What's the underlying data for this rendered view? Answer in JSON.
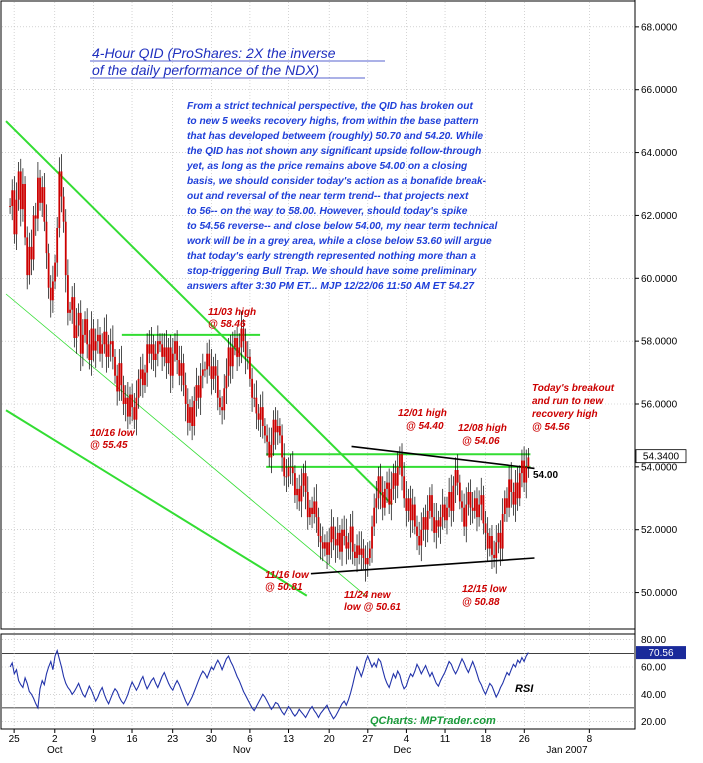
{
  "chart_data": {
    "type": "candlestick",
    "title_lines": [
      "4-Hour QID (ProShares: 2X the inverse",
      "of the daily performance of the NDX)"
    ],
    "commentary_lines": [
      "From a strict technical perspective, the QID has broken out",
      "to new 5 weeks recovery highs, from within the base pattern",
      "that has developed betweem (roughly) 50.70 and 54.20. While",
      "the QID has not shown any significant upside follow-through",
      "yet, as long as the price remains above 54.00 on a closing",
      "basis, we should consider today's action as a bonafide break-",
      "out and reversal of the near term trend-- that projects next",
      "to 56-- on the way to 58.00. However, should today's spike",
      "to 54.56 reverse-- and close below 54.00, my near term technical",
      "work will be in a grey area, while a close below 53.60 will argue",
      "that today's early strength represented nothing more than a",
      "stop-triggering Bull Trap. We should have some preliminary",
      "answers after 3:30 PM ET... MJP 12/22/06  11:50 AM ET 54.27"
    ],
    "price_axis": {
      "ticks": [
        "68.0000",
        "66.0000",
        "64.0000",
        "62.0000",
        "60.0000",
        "58.0000",
        "56.0000",
        "54.0000",
        "52.0000",
        "50.0000"
      ],
      "values": [
        68,
        66,
        64,
        62,
        60,
        58,
        56,
        54,
        52,
        50
      ],
      "range": [
        49.0,
        68.6
      ]
    },
    "last_price_label": "54.3400",
    "last_price": 54.34,
    "rsi_axis": {
      "ticks": [
        "80.00",
        "60.00",
        "40.00",
        "20.00"
      ],
      "values": [
        80,
        60,
        40,
        20
      ],
      "range": [
        16,
        82
      ]
    },
    "rsi_last_label": "70.56",
    "rsi_last": 70.56,
    "x_axis": {
      "day_ticks": [
        {
          "label": "25",
          "t": 2
        },
        {
          "label": "2",
          "t": 22
        },
        {
          "label": "9",
          "t": 41
        },
        {
          "label": "16",
          "t": 60
        },
        {
          "label": "23",
          "t": 80
        },
        {
          "label": "30",
          "t": 99
        },
        {
          "label": "6",
          "t": 118
        },
        {
          "label": "13",
          "t": 137
        },
        {
          "label": "20",
          "t": 157
        },
        {
          "label": "27",
          "t": 176
        },
        {
          "label": "4",
          "t": 195
        },
        {
          "label": "11",
          "t": 214
        },
        {
          "label": "18",
          "t": 234
        },
        {
          "label": "26",
          "t": 253
        },
        {
          "label": "8",
          "t": 285
        }
      ],
      "month_ticks": [
        {
          "label": "Oct",
          "t": 22
        },
        {
          "label": "Nov",
          "t": 114
        },
        {
          "label": "Dec",
          "t": 193
        },
        {
          "label": "Jan 2007",
          "t": 274
        }
      ],
      "range": [
        -2,
        305
      ]
    },
    "closes": [
      62.3,
      62.8,
      61.4,
      62.5,
      63.4,
      62.2,
      63.0,
      61.3,
      60.1,
      61.0,
      60.6,
      62.0,
      61.9,
      63.2,
      62.4,
      62.9,
      61.8,
      60.8,
      59.7,
      59.3,
      59.9,
      60.5,
      61.6,
      63.4,
      62.6,
      61.8,
      60.1,
      58.9,
      59.0,
      59.4,
      58.1,
      58.5,
      58.9,
      57.6,
      58.2,
      58.7,
      57.9,
      57.4,
      58.4,
      57.7,
      58.0,
      58.2,
      57.6,
      57.9,
      58.3,
      57.5,
      57.9,
      58.0,
      57.5,
      56.9,
      56.4,
      57.3,
      56.6,
      56.0,
      56.2,
      55.6,
      56.3,
      55.9,
      55.5,
      56.2,
      56.8,
      57.1,
      56.6,
      57.0,
      57.9,
      57.6,
      57.9,
      57.4,
      57.6,
      58.0,
      57.9,
      57.5,
      57.8,
      57.3,
      57.8,
      56.9,
      57.6,
      58.0,
      57.4,
      56.9,
      57.3,
      56.6,
      56.0,
      55.4,
      55.9,
      55.3,
      56.1,
      56.6,
      56.2,
      56.9,
      57.1,
      57.1,
      57.6,
      57.2,
      56.8,
      57.2,
      56.9,
      56.2,
      55.9,
      55.8,
      56.5,
      56.9,
      57.8,
      57.2,
      57.8,
      58.1,
      57.5,
      57.8,
      58.4,
      58.0,
      57.5,
      57.5,
      56.8,
      56.2,
      56.2,
      55.7,
      55.5,
      55.9,
      55.3,
      55.0,
      54.8,
      54.3,
      54.7,
      55.5,
      55.1,
      55.3,
      55.0,
      54.3,
      53.7,
      53.7,
      54.0,
      54.0,
      53.8,
      53.1,
      53.3,
      52.9,
      53.4,
      53.8,
      53.2,
      52.4,
      52.7,
      52.5,
      52.9,
      52.4,
      51.8,
      51.6,
      51.4,
      51.6,
      51.2,
      51.6,
      52.1,
      51.7,
      51.5,
      51.9,
      51.3,
      52.0,
      51.8,
      51.4,
      51.6,
      52.1,
      51.3,
      51.1,
      51.5,
      51.2,
      51.4,
      51.1,
      50.9,
      51.1,
      51.4,
      52.1,
      52.7,
      53.0,
      53.7,
      53.2,
      52.7,
      53.3,
      53.5,
      52.8,
      53.3,
      53.8,
      53.4,
      54.0,
      54.4,
      53.7,
      53.0,
      52.6,
      53.0,
      52.3,
      52.8,
      52.1,
      51.8,
      51.5,
      52.0,
      52.4,
      52.0,
      52.6,
      53.1,
      52.4,
      51.9,
      52.3,
      52.1,
      52.4,
      52.8,
      52.3,
      52.7,
      53.2,
      52.6,
      53.4,
      53.9,
      53.5,
      52.9,
      52.7,
      52.1,
      52.8,
      53.2,
      52.7,
      52.6,
      53.0,
      52.4,
      52.8,
      53.1,
      52.2,
      51.9,
      51.4,
      51.8,
      51.2,
      51.1,
      51.6,
      51.9,
      51.4,
      52.5,
      53.0,
      52.7,
      53.6,
      53.2,
      52.8,
      53.5,
      53.0,
      53.8,
      54.2,
      53.5,
      54.0,
      54.3
    ],
    "rsi": [
      60,
      63,
      55,
      58,
      50,
      47,
      45,
      52,
      48,
      42,
      40,
      37,
      33,
      30,
      44,
      50,
      47,
      55,
      60,
      64,
      58,
      68,
      72,
      66,
      60,
      53,
      48,
      45,
      43,
      40,
      42,
      45,
      48,
      44,
      40,
      38,
      42,
      46,
      43,
      39,
      35,
      38,
      42,
      45,
      40,
      36,
      33,
      37,
      41,
      44,
      42,
      38,
      35,
      33,
      36,
      40,
      45,
      49,
      46,
      43,
      46,
      50,
      53,
      48,
      44,
      47,
      50,
      52,
      48,
      45,
      49,
      53,
      56,
      52,
      48,
      45,
      43,
      47,
      50,
      47,
      43,
      39,
      35,
      32,
      35,
      38,
      42,
      46,
      50,
      54,
      57,
      55,
      52,
      56,
      60,
      58,
      62,
      65,
      62,
      58,
      62,
      66,
      68,
      64,
      61,
      57,
      53,
      50,
      46,
      42,
      39,
      36,
      33,
      30,
      28,
      31,
      34,
      37,
      40,
      38,
      35,
      32,
      29,
      31,
      34,
      33,
      30,
      27,
      25,
      28,
      31,
      29,
      26,
      24,
      26,
      29,
      27,
      25,
      23,
      26,
      29,
      31,
      28,
      26,
      23,
      26,
      28,
      30,
      32,
      28,
      25,
      22,
      24,
      27,
      30,
      33,
      35,
      32,
      36,
      41,
      47,
      54,
      60,
      57,
      53,
      58,
      64,
      68,
      64,
      60,
      63,
      60,
      66,
      64,
      58,
      52,
      48,
      45,
      50,
      55,
      52,
      57,
      54,
      48,
      44,
      46,
      51,
      55,
      53,
      57,
      62,
      59,
      55,
      58,
      61,
      57,
      53,
      56,
      52,
      48,
      46,
      50,
      53,
      56,
      60,
      64,
      62,
      58,
      55,
      58,
      62,
      66,
      63,
      59,
      56,
      60,
      64,
      60,
      55,
      50,
      47,
      43,
      40,
      44,
      48,
      46,
      42,
      38,
      41,
      45,
      48,
      52,
      56,
      54,
      58,
      62,
      60,
      65,
      63,
      67,
      64,
      68,
      70.56
    ],
    "levels": {
      "shelf_58": 58.2,
      "resistance_upper": 54.4,
      "resistance_lower": 54.0,
      "level_label": "54.00"
    },
    "annotations": [
      {
        "lines": [
          "11/03 high",
          "@ 58.46"
        ]
      },
      {
        "lines": [
          "10/16 low",
          "@ 55.45"
        ]
      },
      {
        "lines": [
          "12/01 high",
          "@ 54.40"
        ]
      },
      {
        "lines": [
          "12/08 high",
          "@ 54.06"
        ]
      },
      {
        "lines": [
          "Today's breakout",
          "and run to new",
          "recovery high",
          "@ 54.56"
        ]
      },
      {
        "lines": [
          "11/16 low",
          "@ 50.81"
        ]
      },
      {
        "lines": [
          "11/24 new",
          "low @ 50.61"
        ]
      },
      {
        "lines": [
          "12/15 low",
          "@ 50.88"
        ]
      }
    ],
    "rsi_label": "RSI",
    "credit": "QCharts: MPTrader.com",
    "colors": {
      "price": "#cc0000",
      "wick": "#000000",
      "channel": "#33dd33",
      "title": "#1f2fbf",
      "commentary": "#1f3fd9",
      "annotation": "#cc0000",
      "credit": "#1a9a3a",
      "rsi_line": "#2233aa"
    }
  }
}
